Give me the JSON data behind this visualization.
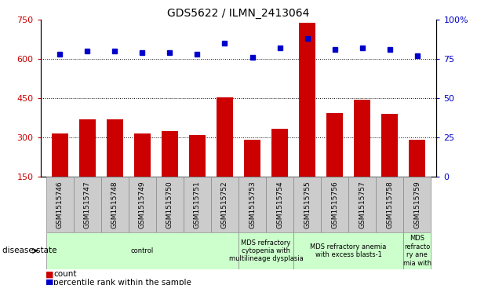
{
  "title": "GDS5622 / ILMN_2413064",
  "samples": [
    "GSM1515746",
    "GSM1515747",
    "GSM1515748",
    "GSM1515749",
    "GSM1515750",
    "GSM1515751",
    "GSM1515752",
    "GSM1515753",
    "GSM1515754",
    "GSM1515755",
    "GSM1515756",
    "GSM1515757",
    "GSM1515758",
    "GSM1515759"
  ],
  "counts": [
    315,
    370,
    370,
    315,
    325,
    310,
    455,
    290,
    335,
    740,
    395,
    445,
    390,
    290
  ],
  "percentile_ranks": [
    78,
    80,
    80,
    79,
    79,
    78,
    85,
    76,
    82,
    88,
    81,
    82,
    81,
    77
  ],
  "ylim_left": [
    150,
    750
  ],
  "ylim_right": [
    0,
    100
  ],
  "yticks_left": [
    150,
    300,
    450,
    600,
    750
  ],
  "yticks_right": [
    0,
    25,
    50,
    75,
    100
  ],
  "bar_color": "#cc0000",
  "dot_color": "#0000cc",
  "bg_color": "#ffffff",
  "label_bg": "#cccccc",
  "disease_color": "#ccffcc",
  "group_defs": [
    {
      "start": 0,
      "end": 6,
      "label": "control"
    },
    {
      "start": 7,
      "end": 8,
      "label": "MDS refractory\ncytopenia with\nmultilineage dysplasia"
    },
    {
      "start": 9,
      "end": 12,
      "label": "MDS refractory anemia\nwith excess blasts-1"
    },
    {
      "start": 13,
      "end": 13,
      "label": "MDS\nrefracto\nry ane\nmia with"
    }
  ],
  "disease_state_label": "disease state",
  "legend": [
    {
      "label": "count",
      "color": "#cc0000"
    },
    {
      "label": "percentile rank within the sample",
      "color": "#0000cc"
    }
  ]
}
